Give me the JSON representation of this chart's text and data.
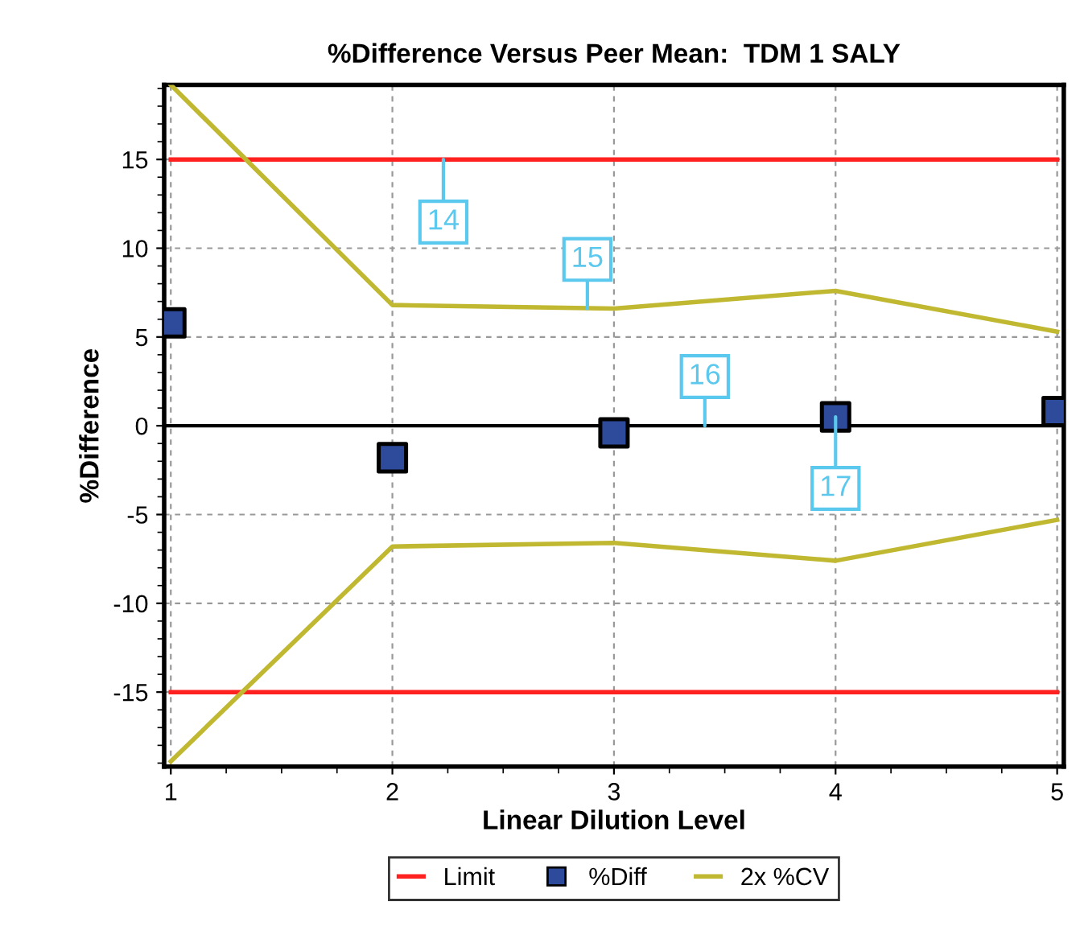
{
  "chart_data": {
    "type": "line",
    "title": "%Difference Versus Peer Mean:  TDM 1 SALY",
    "xlabel": "Linear Dilution Level",
    "ylabel": "%Difference",
    "x": [
      1,
      2,
      3,
      4,
      5
    ],
    "series": [
      {
        "name": "Limit",
        "color": "#ff2020",
        "values": [
          15,
          15,
          15,
          15,
          15
        ]
      },
      {
        "color": "#ff2020",
        "values": [
          -15,
          -15,
          -15,
          -15,
          -15
        ]
      },
      {
        "name": "%Diff",
        "type": "scatter",
        "marker": "square",
        "color": "#2e4a9a",
        "values": [
          5.8,
          -1.8,
          -0.4,
          0.5,
          0.8
        ]
      },
      {
        "name": "2x %CV",
        "color": "#c0b830",
        "values": [
          19.2,
          6.8,
          6.6,
          7.6,
          5.3
        ]
      },
      {
        "color": "#c0b830",
        "values": [
          -18.9,
          -6.8,
          -6.6,
          -7.6,
          -5.3
        ]
      }
    ],
    "ref_lines": [
      {
        "axis": "y",
        "value": 0,
        "color": "#000000"
      }
    ],
    "annotations": [
      {
        "text": "14",
        "x": 2.23,
        "y": 15
      },
      {
        "text": "15",
        "x": 2.88,
        "y": 6.6
      },
      {
        "text": "16",
        "x": 3.41,
        "y": 0
      },
      {
        "text": "17",
        "x": 4,
        "y": 0.5
      }
    ],
    "xlim": [
      0.97,
      5.03
    ],
    "xticks": [
      1,
      2,
      3,
      4,
      5
    ],
    "ylim": [
      -19.2,
      19.2
    ],
    "yticks": [
      -15,
      -10,
      -5,
      0,
      5,
      10,
      15
    ],
    "grid": true,
    "legend": "bottom"
  }
}
